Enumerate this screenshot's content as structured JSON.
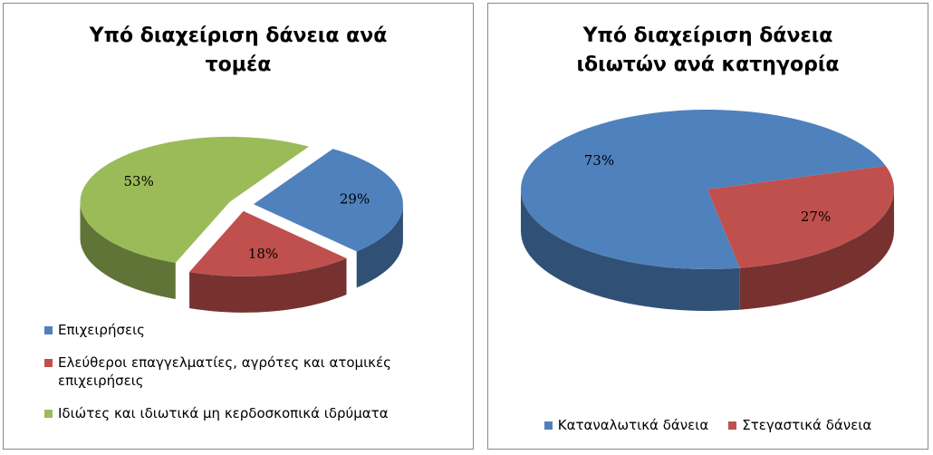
{
  "chart_data": [
    {
      "type": "pie3d",
      "title": "Υπό διαχείριση δάνεια ανά τομέα",
      "categories": [
        "Επιχειρήσεις",
        "Ελεύθεροι επαγγελματίες, αγρότες και ατομικές επιχειρήσεις",
        "Ιδιώτες και ιδιωτικά μη κερδοσκοπικά ιδρύματα"
      ],
      "values": [
        29,
        18,
        53
      ],
      "value_labels": [
        "29%",
        "18%",
        "53%"
      ],
      "colors": [
        "#4f81bd",
        "#c0504d",
        "#9bbb59"
      ],
      "legend": "bottom"
    },
    {
      "type": "pie3d",
      "title": "Υπό διαχείριση δάνεια ιδιωτών ανά κατηγορία",
      "categories": [
        "Καταναλωτικά δάνεια",
        "Στεγαστικά δάνεια"
      ],
      "values": [
        73,
        27
      ],
      "value_labels": [
        "73%",
        "27%"
      ],
      "colors": [
        "#4f81bd",
        "#c0504d"
      ],
      "legend": "bottom"
    }
  ]
}
